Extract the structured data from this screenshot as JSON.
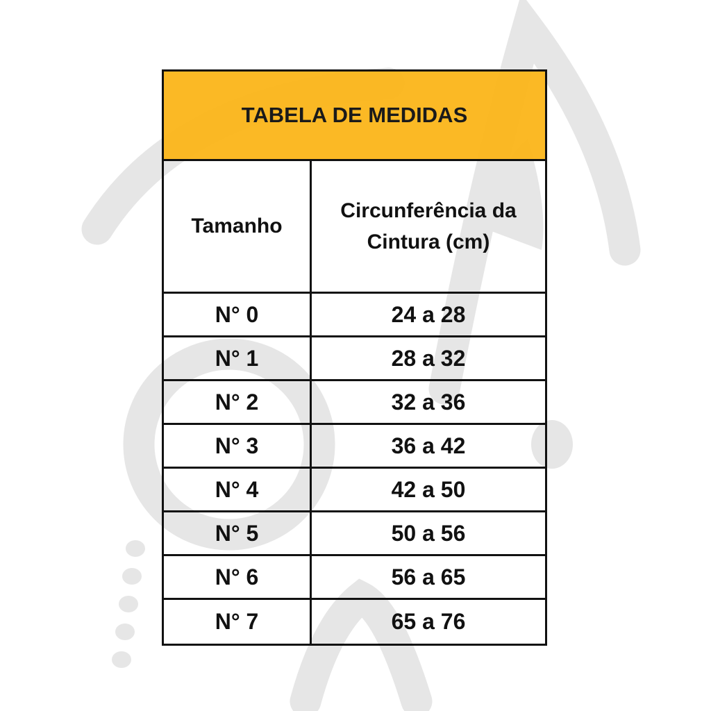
{
  "table": {
    "title": "TABELA DE MEDIDAS",
    "header": {
      "col1": "Tamanho",
      "col2_line1": "Circunferência da",
      "col2_line2": "Cintura (cm)"
    },
    "rows": [
      {
        "size": "N° 0",
        "range": "24 a 28"
      },
      {
        "size": "N° 1",
        "range": "28 a 32"
      },
      {
        "size": "N° 2",
        "range": "32 a 36"
      },
      {
        "size": "N° 3",
        "range": "36 a 42"
      },
      {
        "size": "N° 4",
        "range": "42 a 50"
      },
      {
        "size": "N° 5",
        "range": "50 a 56"
      },
      {
        "size": "N° 6",
        "range": "56 a 65"
      },
      {
        "size": "N° 7",
        "range": "65 a 76"
      }
    ]
  },
  "colors": {
    "title_bg": "#fbb414",
    "border": "#111111",
    "watermark": "#e6e6e6"
  }
}
